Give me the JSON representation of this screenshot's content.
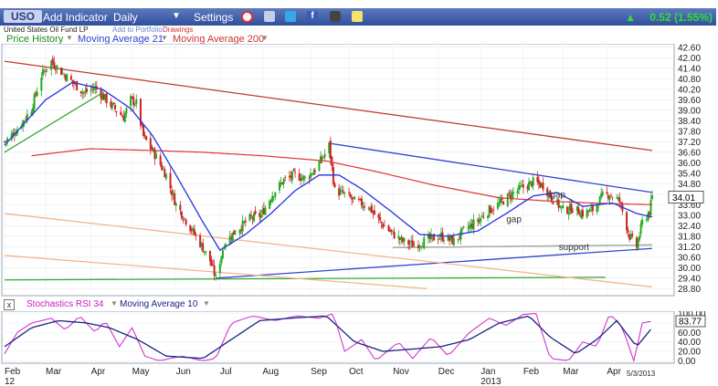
{
  "toolbar": {
    "symbol": "USO",
    "add_indicator": "Add Indicator",
    "interval": "Daily",
    "settings": "Settings",
    "change": "0.52 (1.55%)",
    "colors": {
      "bar": "#2f4f9a",
      "up": "#33dd33"
    },
    "icons": [
      "alarm-clock-icon",
      "chart-icon",
      "twitter-icon",
      "facebook-icon",
      "camera-icon",
      "note-icon"
    ]
  },
  "subbar": {
    "price_history": "Price History",
    "ma21": "Moving Average 21",
    "ma200": "Moving Average 200",
    "fund_name": "United States Oil Fund LP",
    "add_portfolio": "Add to Portfolio",
    "drawings": "Drawings"
  },
  "osc_bar": {
    "stoch": "Stochastics RSI 34",
    "ma10": "Moving Average 10"
  },
  "chart_data": [
    {
      "type": "candlestick",
      "title": "USO",
      "x_start": "2012-02-01",
      "x_end": "2013-05-03",
      "x_ticks": [
        "Feb",
        "Mar",
        "Apr",
        "May",
        "Jun",
        "Jul",
        "Aug",
        "Sep",
        "Oct",
        "Nov",
        "Dec",
        "Jan",
        "Feb",
        "Mar",
        "Apr"
      ],
      "x_tick_dates": [
        "2012-02-01",
        "2012-03-01",
        "2012-04-02",
        "2012-05-01",
        "2012-06-01",
        "2012-07-02",
        "2012-08-01",
        "2012-09-04",
        "2012-10-01",
        "2012-11-01",
        "2012-12-03",
        "2013-01-02",
        "2013-02-01",
        "2013-03-01",
        "2013-04-01"
      ],
      "x_sublabels": [
        {
          "text": "12",
          "date": "2012-02-01"
        },
        {
          "text": "2013",
          "date": "2013-01-02"
        }
      ],
      "date_label": "5/3/2013",
      "y_ticks": [
        28.8,
        29.4,
        30.0,
        30.6,
        31.2,
        31.8,
        32.4,
        33.0,
        33.6,
        34.2,
        34.8,
        35.4,
        36.0,
        36.6,
        37.2,
        37.8,
        38.4,
        39.0,
        39.6,
        40.2,
        40.8,
        41.4,
        42.0,
        42.6
      ],
      "ylim": [
        28.4,
        42.8
      ],
      "last_price": "34.01",
      "price_anchors": [
        [
          "2012-02-01",
          37.2
        ],
        [
          "2012-02-10",
          37.9
        ],
        [
          "2012-02-20",
          39.1
        ],
        [
          "2012-02-27",
          41.0
        ],
        [
          "2012-03-05",
          41.8
        ],
        [
          "2012-03-12",
          41.2
        ],
        [
          "2012-03-20",
          40.6
        ],
        [
          "2012-03-28",
          40.0
        ],
        [
          "2012-04-05",
          40.3
        ],
        [
          "2012-04-16",
          39.3
        ],
        [
          "2012-04-25",
          38.6
        ],
        [
          "2012-04-30",
          39.6
        ],
        [
          "2012-05-04",
          39.4
        ],
        [
          "2012-05-09",
          37.5
        ],
        [
          "2012-05-16",
          36.6
        ],
        [
          "2012-05-25",
          35.3
        ],
        [
          "2012-06-01",
          33.6
        ],
        [
          "2012-06-08",
          32.7
        ],
        [
          "2012-06-18",
          31.4
        ],
        [
          "2012-06-25",
          30.4
        ],
        [
          "2012-06-29",
          29.4
        ],
        [
          "2012-07-05",
          31.4
        ],
        [
          "2012-07-13",
          32.1
        ],
        [
          "2012-07-23",
          32.8
        ],
        [
          "2012-07-31",
          33.0
        ],
        [
          "2012-08-08",
          34.2
        ],
        [
          "2012-08-16",
          35.0
        ],
        [
          "2012-08-24",
          35.3
        ],
        [
          "2012-08-31",
          35.1
        ],
        [
          "2012-09-07",
          35.6
        ],
        [
          "2012-09-14",
          36.5
        ],
        [
          "2012-09-17",
          37.0
        ],
        [
          "2012-09-21",
          34.4
        ],
        [
          "2012-09-28",
          34.2
        ],
        [
          "2012-10-05",
          33.8
        ],
        [
          "2012-10-15",
          33.5
        ],
        [
          "2012-10-23",
          32.6
        ],
        [
          "2012-10-31",
          32.0
        ],
        [
          "2012-11-08",
          31.5
        ],
        [
          "2012-11-16",
          31.3
        ],
        [
          "2012-11-26",
          31.6
        ],
        [
          "2012-12-05",
          31.8
        ],
        [
          "2012-12-14",
          31.5
        ],
        [
          "2012-12-21",
          32.1
        ],
        [
          "2012-12-31",
          32.7
        ],
        [
          "2013-01-08",
          33.3
        ],
        [
          "2013-01-16",
          33.7
        ],
        [
          "2013-01-25",
          34.3
        ],
        [
          "2013-02-01",
          34.6
        ],
        [
          "2013-02-08",
          34.9
        ],
        [
          "2013-02-15",
          34.7
        ],
        [
          "2013-02-22",
          33.9
        ],
        [
          "2013-03-01",
          33.3
        ],
        [
          "2013-03-08",
          33.4
        ],
        [
          "2013-03-15",
          33.1
        ],
        [
          "2013-03-22",
          33.3
        ],
        [
          "2013-03-29",
          34.1
        ],
        [
          "2013-04-03",
          34.2
        ],
        [
          "2013-04-10",
          33.8
        ],
        [
          "2013-04-17",
          31.8
        ],
        [
          "2013-04-22",
          31.2
        ],
        [
          "2013-04-26",
          32.6
        ],
        [
          "2013-05-01",
          33.2
        ],
        [
          "2013-05-03",
          34.01
        ]
      ],
      "ma21_anchors": [
        [
          "2012-02-01",
          37.0
        ],
        [
          "2012-03-01",
          39.6
        ],
        [
          "2012-03-20",
          40.6
        ],
        [
          "2012-04-10",
          40.2
        ],
        [
          "2012-04-30",
          39.1
        ],
        [
          "2012-05-15",
          37.6
        ],
        [
          "2012-06-01",
          35.3
        ],
        [
          "2012-06-20",
          32.6
        ],
        [
          "2012-07-02",
          31.0
        ],
        [
          "2012-07-20",
          31.9
        ],
        [
          "2012-08-07",
          33.1
        ],
        [
          "2012-08-24",
          34.4
        ],
        [
          "2012-09-10",
          35.3
        ],
        [
          "2012-09-24",
          35.3
        ],
        [
          "2012-10-10",
          34.5
        ],
        [
          "2012-10-31",
          33.2
        ],
        [
          "2012-11-20",
          31.9
        ],
        [
          "2012-12-10",
          31.8
        ],
        [
          "2012-12-31",
          32.1
        ],
        [
          "2013-01-20",
          33.1
        ],
        [
          "2013-02-08",
          34.1
        ],
        [
          "2013-02-25",
          34.3
        ],
        [
          "2013-03-15",
          33.5
        ],
        [
          "2013-04-05",
          33.7
        ],
        [
          "2013-04-22",
          33.1
        ],
        [
          "2013-05-03",
          32.9
        ]
      ],
      "ma200_anchors": [
        [
          "2012-02-20",
          36.4
        ],
        [
          "2012-04-01",
          36.8
        ],
        [
          "2012-05-15",
          36.7
        ],
        [
          "2012-06-20",
          36.6
        ],
        [
          "2012-08-01",
          36.4
        ],
        [
          "2012-09-15",
          36.1
        ],
        [
          "2012-10-20",
          35.5
        ],
        [
          "2012-12-01",
          34.7
        ],
        [
          "2013-01-15",
          34.0
        ],
        [
          "2013-02-20",
          33.8
        ],
        [
          "2013-03-20",
          33.7
        ],
        [
          "2013-05-03",
          33.6
        ]
      ],
      "trendlines": [
        {
          "name": "red-resistance",
          "color": "#c0392b",
          "p1": [
            "2012-02-01",
            41.8
          ],
          "p2": [
            "2013-05-03",
            36.7
          ]
        },
        {
          "name": "blue-upper",
          "color": "#3344cc",
          "p1": [
            "2012-09-18",
            37.1
          ],
          "p2": [
            "2013-05-03",
            34.3
          ]
        },
        {
          "name": "blue-lower",
          "color": "#3344cc",
          "p1": [
            "2012-06-29",
            29.4
          ],
          "p2": [
            "2013-05-03",
            31.1
          ]
        },
        {
          "name": "green-support",
          "color": "#33aa33",
          "p1": [
            "2012-11-01",
            31.15
          ],
          "p2": [
            "2013-05-03",
            31.3
          ]
        },
        {
          "name": "green-low",
          "color": "#33aa33",
          "p1": [
            "2012-02-01",
            29.3
          ],
          "p2": [
            "2013-03-31",
            29.45
          ]
        },
        {
          "name": "green-rise",
          "color": "#33aa33",
          "p1": [
            "2012-02-01",
            36.6
          ],
          "p2": [
            "2012-04-10",
            40.0
          ]
        },
        {
          "name": "orange-upper",
          "color": "#f3b58f",
          "p1": [
            "2012-02-01",
            33.1
          ],
          "p2": [
            "2013-05-03",
            28.9
          ]
        },
        {
          "name": "orange-lower",
          "color": "#f3b58f",
          "p1": [
            "2012-02-01",
            30.7
          ],
          "p2": [
            "2012-11-25",
            28.8
          ]
        },
        {
          "name": "gray-base",
          "color": "#aaaaaa",
          "p1": [
            "2012-11-01",
            31.15
          ],
          "p2": [
            "2013-05-03",
            31.3
          ]
        }
      ],
      "annotations": [
        {
          "text": "gap",
          "date": "2013-01-20",
          "price": 32.6
        },
        {
          "text": "gap",
          "date": "2013-02-20",
          "price": 34.0
        },
        {
          "text": "support",
          "date": "2013-02-26",
          "price": 31.0
        }
      ],
      "colors": {
        "up": "#22aa22",
        "down": "#cc2222",
        "ma21": "#2233dd",
        "ma200": "#dd3333"
      }
    },
    {
      "type": "line",
      "title": "Stochastics RSI 34",
      "y_ticks": [
        0.0,
        20.0,
        40.0,
        60.0,
        80.0,
        100.0
      ],
      "ylim": [
        -5,
        105
      ],
      "last_value": "83.77",
      "series": [
        {
          "name": "Stochastics RSI 34",
          "color": "#cc22cc",
          "anchors": [
            [
              "2012-02-01",
              15
            ],
            [
              "2012-02-10",
              60
            ],
            [
              "2012-02-20",
              80
            ],
            [
              "2012-03-05",
              90
            ],
            [
              "2012-03-15",
              65
            ],
            [
              "2012-03-25",
              95
            ],
            [
              "2012-04-05",
              60
            ],
            [
              "2012-04-12",
              85
            ],
            [
              "2012-04-22",
              30
            ],
            [
              "2012-05-01",
              70
            ],
            [
              "2012-05-10",
              10
            ],
            [
              "2012-05-20",
              0
            ],
            [
              "2012-06-05",
              10
            ],
            [
              "2012-06-20",
              0
            ],
            [
              "2012-06-29",
              5
            ],
            [
              "2012-07-10",
              80
            ],
            [
              "2012-07-25",
              95
            ],
            [
              "2012-08-10",
              85
            ],
            [
              "2012-08-25",
              95
            ],
            [
              "2012-09-10",
              90
            ],
            [
              "2012-09-20",
              100
            ],
            [
              "2012-09-28",
              20
            ],
            [
              "2012-10-10",
              45
            ],
            [
              "2012-10-20",
              0
            ],
            [
              "2012-11-05",
              40
            ],
            [
              "2012-11-15",
              5
            ],
            [
              "2012-11-28",
              50
            ],
            [
              "2012-12-10",
              10
            ],
            [
              "2012-12-25",
              60
            ],
            [
              "2013-01-08",
              90
            ],
            [
              "2013-01-20",
              75
            ],
            [
              "2013-02-01",
              98
            ],
            [
              "2013-02-10",
              100
            ],
            [
              "2013-02-20",
              5
            ],
            [
              "2013-03-05",
              0
            ],
            [
              "2013-03-15",
              40
            ],
            [
              "2013-03-25",
              30
            ],
            [
              "2013-04-03",
              100
            ],
            [
              "2013-04-12",
              70
            ],
            [
              "2013-04-20",
              0
            ],
            [
              "2013-04-26",
              80
            ],
            [
              "2013-05-03",
              84
            ]
          ]
        },
        {
          "name": "Moving Average 10",
          "color": "#1a237e",
          "anchors": [
            [
              "2012-02-01",
              30
            ],
            [
              "2012-02-20",
              70
            ],
            [
              "2012-03-10",
              85
            ],
            [
              "2012-03-30",
              80
            ],
            [
              "2012-04-15",
              70
            ],
            [
              "2012-05-05",
              45
            ],
            [
              "2012-05-25",
              10
            ],
            [
              "2012-06-20",
              5
            ],
            [
              "2012-07-10",
              45
            ],
            [
              "2012-07-30",
              85
            ],
            [
              "2012-08-20",
              90
            ],
            [
              "2012-09-15",
              95
            ],
            [
              "2012-10-05",
              40
            ],
            [
              "2012-10-25",
              20
            ],
            [
              "2012-11-15",
              25
            ],
            [
              "2012-12-05",
              30
            ],
            [
              "2012-12-25",
              45
            ],
            [
              "2013-01-15",
              80
            ],
            [
              "2013-02-05",
              95
            ],
            [
              "2013-02-20",
              50
            ],
            [
              "2013-03-10",
              15
            ],
            [
              "2013-03-25",
              45
            ],
            [
              "2013-04-08",
              85
            ],
            [
              "2013-04-22",
              30
            ],
            [
              "2013-05-03",
              70
            ]
          ]
        }
      ]
    }
  ]
}
